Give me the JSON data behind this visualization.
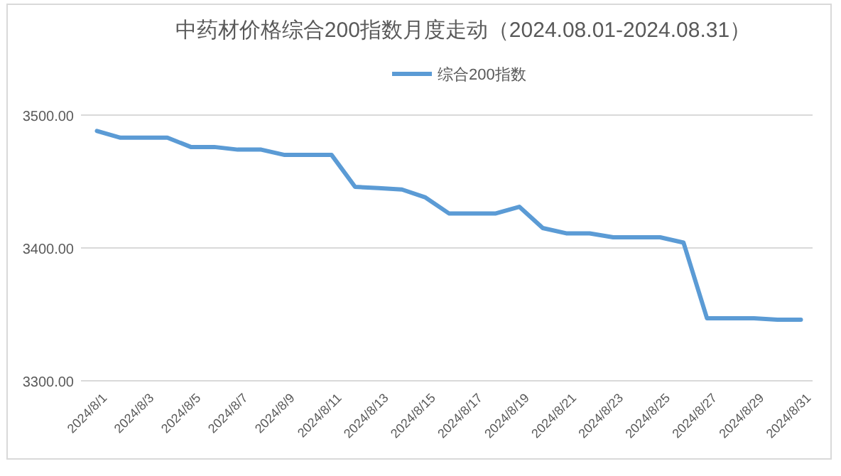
{
  "chart_data": {
    "type": "line",
    "title": "中药材价格综合200指数月度走动（2024.08.01-2024.08.31）",
    "categories": [
      "2024/8/1",
      null,
      "2024/8/3",
      null,
      "2024/8/5",
      null,
      "2024/8/7",
      null,
      "2024/8/9",
      null,
      "2024/8/11",
      null,
      "2024/8/13",
      null,
      "2024/8/15",
      null,
      "2024/8/17",
      null,
      "2024/8/19",
      null,
      "2024/8/21",
      null,
      "2024/8/23",
      null,
      "2024/8/25",
      null,
      "2024/8/27",
      null,
      "2024/8/29",
      null,
      "2024/8/31"
    ],
    "series": [
      {
        "name": "综合200指数",
        "color": "#5b9bd5",
        "values": [
          3488,
          3483,
          3483,
          3483,
          3476,
          3476,
          3474,
          3474,
          3470,
          3470,
          3470,
          3446,
          3445,
          3444,
          3438,
          3426,
          3426,
          3426,
          3431,
          3415,
          3411,
          3411,
          3408,
          3408,
          3408,
          3404,
          3347,
          3347,
          3347,
          3346,
          3346
        ]
      }
    ],
    "ylim": [
      3300,
      3500
    ],
    "yticks": [
      {
        "value": 3300,
        "label": "3300.00"
      },
      {
        "value": 3400,
        "label": "3400.00"
      },
      {
        "value": 3500,
        "label": "3500.00"
      }
    ],
    "grid": "y",
    "legend": "top",
    "marker": "none",
    "line_style": "solid"
  }
}
